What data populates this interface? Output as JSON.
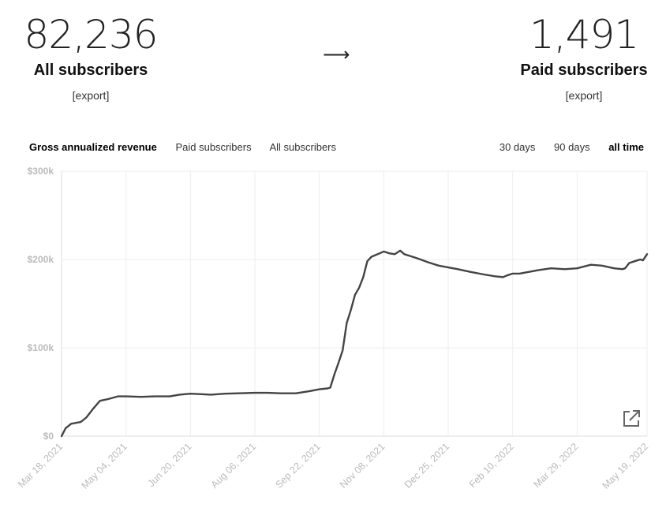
{
  "summary": {
    "all": {
      "value": "82,236",
      "label": "All subscribers",
      "export": "[export]"
    },
    "arrow": "⟶",
    "paid": {
      "value": "1,491",
      "label": "Paid subscribers",
      "export": "[export]"
    }
  },
  "metric_tabs": [
    {
      "label": "Gross annualized revenue",
      "active": true
    },
    {
      "label": "Paid subscribers",
      "active": false
    },
    {
      "label": "All subscribers",
      "active": false
    }
  ],
  "range_tabs": [
    {
      "label": "30 days",
      "active": false
    },
    {
      "label": "90 days",
      "active": false
    },
    {
      "label": "all time",
      "active": true
    }
  ],
  "icons": {
    "external_link": "external-link-icon"
  },
  "colors": {
    "line": "#444444",
    "grid": "#eeeeee",
    "axis_text": "#bbbbbb"
  },
  "chart_data": {
    "type": "line",
    "title": "",
    "xlabel": "",
    "ylabel": "",
    "x_ticks": [
      "Mar 18, 2021",
      "May 04, 2021",
      "Jun 20, 2021",
      "Aug 06, 2021",
      "Sep 22, 2021",
      "Nov 08, 2021",
      "Dec 25, 2021",
      "Feb 10, 2022",
      "Mar 29, 2022",
      "May 19, 2022"
    ],
    "y_ticks": [
      "$0",
      "$100k",
      "$200k",
      "$300k"
    ],
    "ylim": [
      0,
      300000
    ],
    "grid": true,
    "series": [
      {
        "x": [
          "2021-03-18",
          "2021-03-21",
          "2021-03-25",
          "2021-04-01",
          "2021-04-05",
          "2021-04-10",
          "2021-04-15",
          "2021-04-21",
          "2021-04-28",
          "2021-05-04",
          "2021-05-15",
          "2021-05-25",
          "2021-06-05",
          "2021-06-12",
          "2021-06-20",
          "2021-06-28",
          "2021-07-05",
          "2021-07-15",
          "2021-07-25",
          "2021-08-06",
          "2021-08-15",
          "2021-08-25",
          "2021-09-05",
          "2021-09-15",
          "2021-09-22",
          "2021-09-28",
          "2021-09-30",
          "2021-10-03",
          "2021-10-06",
          "2021-10-09",
          "2021-10-12",
          "2021-10-15",
          "2021-10-18",
          "2021-10-21",
          "2021-10-24",
          "2021-10-27",
          "2021-10-30",
          "2021-11-02",
          "2021-11-05",
          "2021-11-08",
          "2021-11-12",
          "2021-11-16",
          "2021-11-20",
          "2021-11-23",
          "2021-11-27",
          "2021-12-03",
          "2021-12-10",
          "2021-12-18",
          "2021-12-25",
          "2022-01-01",
          "2022-01-10",
          "2022-01-20",
          "2022-01-28",
          "2022-02-03",
          "2022-02-06",
          "2022-02-10",
          "2022-02-15",
          "2022-02-22",
          "2022-03-01",
          "2022-03-10",
          "2022-03-20",
          "2022-03-29",
          "2022-04-08",
          "2022-04-16",
          "2022-04-25",
          "2022-05-01",
          "2022-05-03",
          "2022-05-06",
          "2022-05-10",
          "2022-05-14",
          "2022-05-16",
          "2022-05-19"
        ],
        "values": [
          0,
          9000,
          14000,
          16000,
          21000,
          31000,
          40000,
          42000,
          45000,
          45000,
          44500,
          45000,
          45000,
          47000,
          48000,
          47500,
          47000,
          48000,
          48500,
          49000,
          49000,
          48500,
          48500,
          51000,
          53000,
          54000,
          55000,
          70000,
          83000,
          97000,
          128000,
          143000,
          160000,
          168000,
          180000,
          198000,
          203000,
          205000,
          207000,
          209000,
          207000,
          206000,
          210000,
          206000,
          204000,
          201000,
          197000,
          193000,
          191000,
          189000,
          186000,
          183000,
          181000,
          180000,
          182000,
          184000,
          184000,
          186000,
          188000,
          190000,
          189000,
          190000,
          194000,
          193000,
          190000,
          189000,
          190000,
          196000,
          198000,
          200000,
          199000,
          206000
        ]
      }
    ]
  }
}
